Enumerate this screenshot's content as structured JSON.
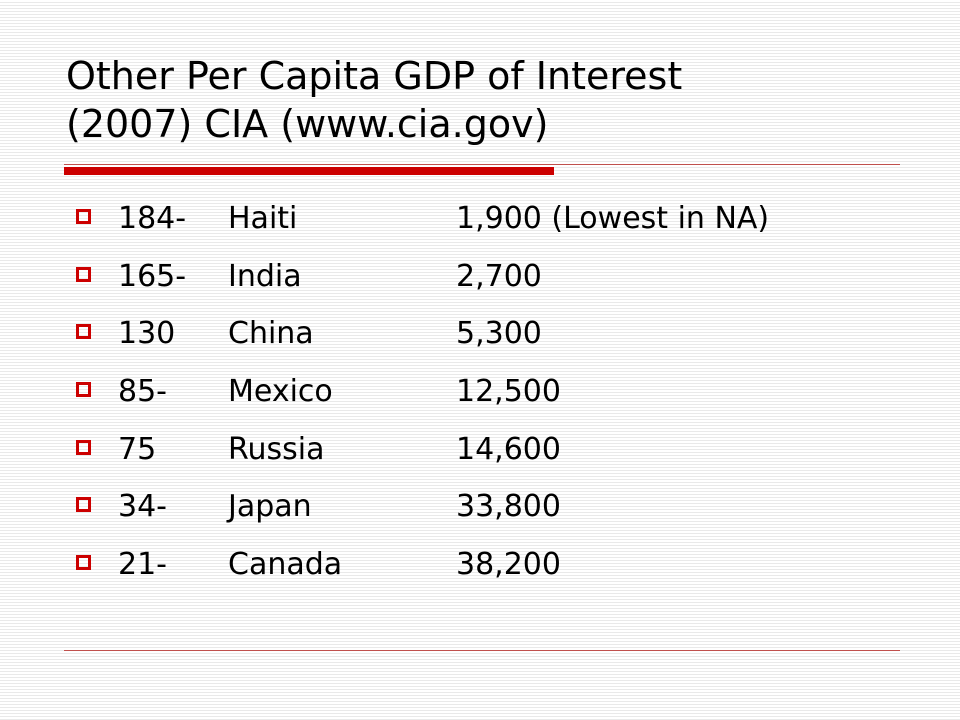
{
  "slide": {
    "title_line1": "Other Per Capita GDP of Interest",
    "title_line2": "(2007) CIA (www.cia.gov)",
    "accent_color": "#cc0000",
    "items": [
      {
        "rank": "184-",
        "country": "Haiti",
        "value": "1,900 (Lowest in NA)"
      },
      {
        "rank": "165-",
        "country": "India",
        "value": "2,700"
      },
      {
        "rank": "130",
        "country": "China",
        "value": "5,300"
      },
      {
        "rank": "85-",
        "country": "Mexico",
        "value": "12,500"
      },
      {
        "rank": "75",
        "country": "Russia",
        "value": "14,600"
      },
      {
        "rank": "34-",
        "country": "Japan",
        "value": "33,800"
      },
      {
        "rank": "21-",
        "country": "Canada",
        "value": "38,200"
      }
    ]
  }
}
